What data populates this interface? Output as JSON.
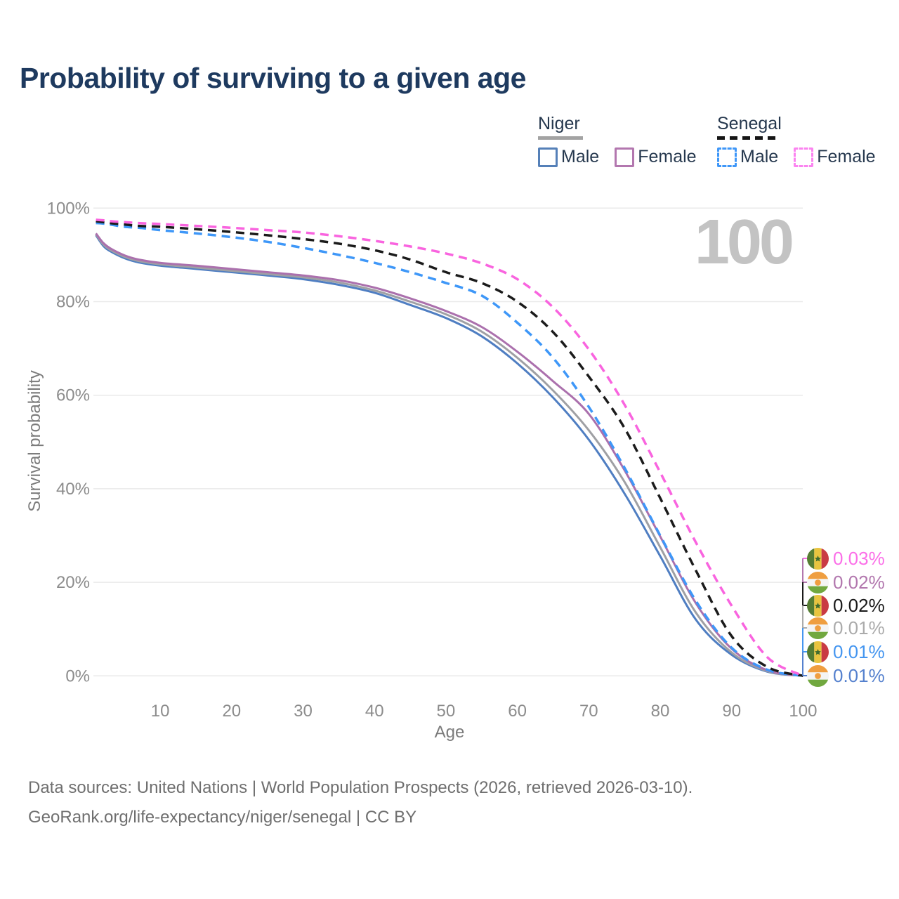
{
  "title": "Probability of surviving to a given age",
  "legend": {
    "groups": [
      {
        "label": "Niger",
        "underline_style": "solid",
        "underline_color": "#a3a3a3",
        "items": [
          {
            "label": "Male",
            "color": "#5580b8",
            "dashed": false
          },
          {
            "label": "Female",
            "color": "#b377af",
            "dashed": false
          }
        ]
      },
      {
        "label": "Senegal",
        "underline_style": "dashed",
        "underline_color": "#151515",
        "items": [
          {
            "label": "Male",
            "color": "#3f97f8",
            "dashed": true
          },
          {
            "label": "Female",
            "color": "#fb84f0",
            "dashed": true
          }
        ]
      }
    ]
  },
  "watermark": "100",
  "axes": {
    "y_label": "Survival probability",
    "x_label": "Age",
    "y_ticks": [
      {
        "label": "100%",
        "value": 100
      },
      {
        "label": "80%",
        "value": 80
      },
      {
        "label": "60%",
        "value": 60
      },
      {
        "label": "40%",
        "value": 40
      },
      {
        "label": "20%",
        "value": 20
      },
      {
        "label": "0%",
        "value": 0
      }
    ],
    "x_ticks": [
      10,
      20,
      30,
      40,
      50,
      60,
      70,
      80,
      90,
      100
    ],
    "grid_color": "#e9e9e9",
    "tick_color": "#8c8c8c"
  },
  "end_labels": [
    {
      "flag": "senegal",
      "value": "0.03%",
      "color": "#fb6fe8"
    },
    {
      "flag": "niger",
      "value": "0.02%",
      "color": "#b277ae"
    },
    {
      "flag": "senegal",
      "value": "0.02%",
      "color": "#1a1a1a"
    },
    {
      "flag": "niger",
      "value": "0.01%",
      "color": "#ababab"
    },
    {
      "flag": "senegal",
      "value": "0.01%",
      "color": "#4596f0"
    },
    {
      "flag": "niger",
      "value": "0.01%",
      "color": "#5581ce"
    }
  ],
  "footer": {
    "line1": "Data sources: United Nations | World Population Prospects (2026, retrieved 2026-03-10).",
    "line2": "GeoRank.org/life-expectancy/niger/senegal | CC BY"
  },
  "chart_data": {
    "type": "line",
    "title": "Probability of surviving to a given age",
    "xlabel": "Age",
    "ylabel": "Survival probability",
    "xlim": [
      0,
      100
    ],
    "ylim": [
      0,
      100
    ],
    "grid": "horizontal-only",
    "legend_position": "top-right",
    "x": [
      1,
      2,
      3,
      5,
      7,
      10,
      15,
      20,
      25,
      30,
      35,
      40,
      45,
      50,
      55,
      60,
      65,
      70,
      75,
      80,
      85,
      90,
      95,
      100
    ],
    "series": [
      {
        "name": "Niger Male",
        "style": "solid",
        "color": "#4f7ec2",
        "values": [
          94.2,
          92.0,
          90.8,
          89.3,
          88.4,
          87.7,
          87.0,
          86.3,
          85.6,
          84.8,
          83.6,
          81.9,
          79.3,
          76.5,
          72.6,
          66.8,
          59.5,
          50.5,
          39.0,
          25.6,
          12.0,
          4.5,
          0.9,
          0.01
        ]
      },
      {
        "name": "Niger Overall",
        "style": "solid",
        "color": "#9fa0a4",
        "values": [
          94.4,
          92.3,
          91.1,
          89.6,
          88.7,
          88.0,
          87.3,
          86.6,
          85.9,
          85.2,
          84.1,
          82.4,
          80.0,
          77.3,
          73.6,
          68.0,
          61.0,
          52.5,
          41.5,
          27.5,
          13.5,
          5.0,
          1.0,
          0.01
        ]
      },
      {
        "name": "Niger Female",
        "style": "solid",
        "color": "#ab70ad",
        "values": [
          94.6,
          92.6,
          91.4,
          89.9,
          89.0,
          88.3,
          87.7,
          87.0,
          86.3,
          85.6,
          84.6,
          83.0,
          80.7,
          78.0,
          74.6,
          69.3,
          63.0,
          56.0,
          44.0,
          29.8,
          15.5,
          5.8,
          1.2,
          0.02
        ]
      },
      {
        "name": "Senegal Male",
        "style": "dashed",
        "color": "#3e97f8",
        "values": [
          96.8,
          96.7,
          96.5,
          96.0,
          95.8,
          95.3,
          94.6,
          93.8,
          92.8,
          91.5,
          90.0,
          88.3,
          86.3,
          84.0,
          81.3,
          75.5,
          68.0,
          57.5,
          44.5,
          30.0,
          16.0,
          6.0,
          1.3,
          0.01
        ]
      },
      {
        "name": "Senegal Overall",
        "style": "dashed",
        "color": "#1b1b1b",
        "values": [
          97.2,
          97.0,
          96.8,
          96.5,
          96.2,
          96.0,
          95.5,
          94.9,
          94.2,
          93.4,
          92.4,
          91.0,
          89.0,
          86.3,
          84.0,
          80.0,
          73.5,
          64.0,
          53.0,
          38.0,
          22.5,
          8.5,
          1.9,
          0.02
        ]
      },
      {
        "name": "Senegal Female",
        "style": "dashed",
        "color": "#f964df",
        "values": [
          97.5,
          97.4,
          97.2,
          97.0,
          96.8,
          96.6,
          96.2,
          95.8,
          95.3,
          94.8,
          94.0,
          93.0,
          91.8,
          90.3,
          88.2,
          84.8,
          78.8,
          69.8,
          58.0,
          43.5,
          28.5,
          15.0,
          4.0,
          0.03
        ]
      }
    ]
  }
}
